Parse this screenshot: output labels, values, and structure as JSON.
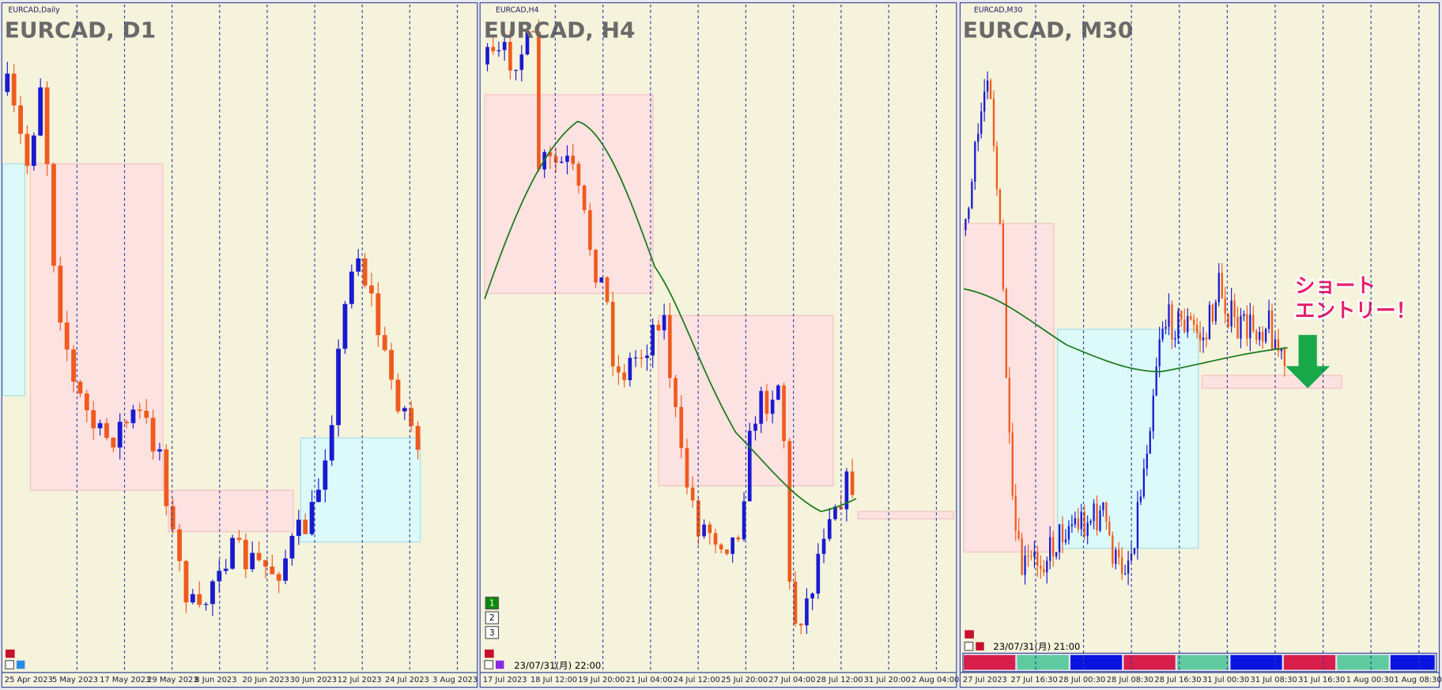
{
  "panels": [
    {
      "small_label": "EURCAD,Daily",
      "title": "EURCAD, D1",
      "x_labels": [
        "25 Apr 2023",
        "5 May 2023",
        "17 May 2023",
        "29 May 2023",
        "8 Jun 2023",
        "20 Jun 2023",
        "30 Jun 2023",
        "12 Jul 2023",
        "24 Jul 2023",
        "3 Aug 2023"
      ]
    },
    {
      "small_label": "EURCAD,H4",
      "title": "EURCAD, H4",
      "x_labels": [
        "17 Jul 2023",
        "18 Jul 12:00",
        "19 Jul 20:00",
        "21 Jul 04:00",
        "24 Jul 12:00",
        "25 Jul 20:00",
        "27 Jul 04:00",
        "28 Jul 12:00",
        "31 Jul 20:00",
        "2 Aug 04:00"
      ],
      "buttons": [
        "1",
        "2",
        "3"
      ],
      "timestamp": "23/07/31(月) 22:00"
    },
    {
      "small_label": "EURCAD,M30",
      "title": "EURCAD, M30",
      "x_labels": [
        "27 Jul 2023",
        "27 Jul 16:30",
        "28 Jul 00:30",
        "28 Jul 08:30",
        "28 Jul 16:30",
        "31 Jul 00:30",
        "31 Jul 08:30",
        "31 Jul 16:30",
        "1 Aug 00:30",
        "1 Aug 08:30"
      ],
      "timestamp": "23/07/31(月) 21:00",
      "annotation": [
        "ショート",
        "エントリー！"
      ]
    }
  ]
}
